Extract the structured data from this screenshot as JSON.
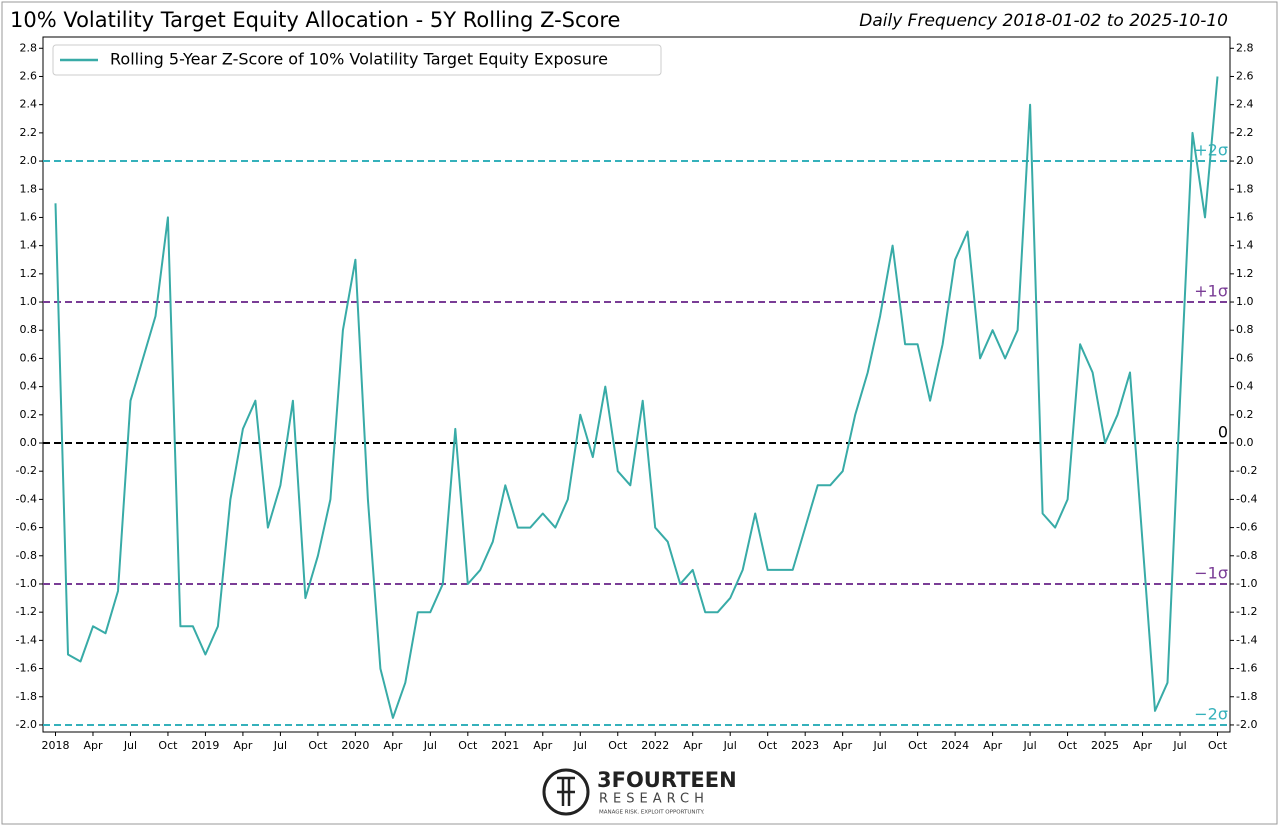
{
  "chart_data": {
    "type": "line",
    "title": "10% Volatility Target Equity Allocation - 5Y Rolling Z-Score",
    "subtitle": "Daily Frequency 2018-01-02 to 2025-10-10",
    "legend": "upper left",
    "x": [
      "2018-01",
      "2018-02",
      "2018-03",
      "2018-04",
      "2018-05",
      "2018-06",
      "2018-07",
      "2018-08",
      "2018-09",
      "2018-10",
      "2018-11",
      "2018-12",
      "2019-01",
      "2019-02",
      "2019-03",
      "2019-04",
      "2019-05",
      "2019-06",
      "2019-07",
      "2019-08",
      "2019-09",
      "2019-10",
      "2019-11",
      "2019-12",
      "2020-01",
      "2020-02",
      "2020-03",
      "2020-04",
      "2020-05",
      "2020-06",
      "2020-07",
      "2020-08",
      "2020-09",
      "2020-10",
      "2020-11",
      "2020-12",
      "2021-01",
      "2021-02",
      "2021-03",
      "2021-04",
      "2021-05",
      "2021-06",
      "2021-07",
      "2021-08",
      "2021-09",
      "2021-10",
      "2021-11",
      "2021-12",
      "2022-01",
      "2022-02",
      "2022-03",
      "2022-04",
      "2022-05",
      "2022-06",
      "2022-07",
      "2022-08",
      "2022-09",
      "2022-10",
      "2022-11",
      "2022-12",
      "2023-01",
      "2023-02",
      "2023-03",
      "2023-04",
      "2023-05",
      "2023-06",
      "2023-07",
      "2023-08",
      "2023-09",
      "2023-10",
      "2023-11",
      "2023-12",
      "2024-01",
      "2024-02",
      "2024-03",
      "2024-04",
      "2024-05",
      "2024-06",
      "2024-07",
      "2024-08",
      "2024-09",
      "2024-10",
      "2024-11",
      "2024-12",
      "2025-01",
      "2025-02",
      "2025-03",
      "2025-04",
      "2025-05",
      "2025-06",
      "2025-07",
      "2025-08",
      "2025-09",
      "2025-10"
    ],
    "series": [
      {
        "name": "Rolling 5-Year Z-Score of 10% Volatility Target Equity Exposure",
        "color": "#38aba7",
        "values": [
          1.7,
          -1.5,
          -1.55,
          -1.3,
          -1.35,
          -1.05,
          0.3,
          0.6,
          0.9,
          1.6,
          -1.3,
          -1.3,
          -1.5,
          -1.3,
          -0.4,
          0.1,
          0.3,
          -0.6,
          -0.3,
          0.3,
          -1.1,
          -0.8,
          -0.4,
          0.8,
          1.3,
          -0.4,
          -1.6,
          -1.95,
          -1.7,
          -1.2,
          -1.2,
          -1.0,
          0.1,
          -1.0,
          -0.9,
          -0.7,
          -0.3,
          -0.6,
          -0.6,
          -0.5,
          -0.6,
          -0.4,
          0.2,
          -0.1,
          0.4,
          -0.2,
          -0.3,
          0.3,
          -0.6,
          -0.7,
          -1.0,
          -0.9,
          -1.2,
          -1.2,
          -1.1,
          -0.9,
          -0.5,
          -0.9,
          -0.9,
          -0.9,
          -0.6,
          -0.3,
          -0.3,
          -0.2,
          0.2,
          0.5,
          0.9,
          1.4,
          0.7,
          0.7,
          0.3,
          0.7,
          1.3,
          1.5,
          0.6,
          0.8,
          0.6,
          0.8,
          2.4,
          -0.5,
          -0.6,
          -0.4,
          0.7,
          0.5,
          0.0,
          0.2,
          0.5,
          -0.7,
          -1.9,
          -1.7,
          0.3,
          2.2,
          1.6,
          2.6
        ]
      }
    ],
    "xlim": [
      "2017-12",
      "2025-11"
    ],
    "xticks": [
      {
        "value": "2018-01",
        "label": "2018"
      },
      {
        "value": "2018-04",
        "label": "Apr"
      },
      {
        "value": "2018-07",
        "label": "Jul"
      },
      {
        "value": "2018-10",
        "label": "Oct"
      },
      {
        "value": "2019-01",
        "label": "2019"
      },
      {
        "value": "2019-04",
        "label": "Apr"
      },
      {
        "value": "2019-07",
        "label": "Jul"
      },
      {
        "value": "2019-10",
        "label": "Oct"
      },
      {
        "value": "2020-01",
        "label": "2020"
      },
      {
        "value": "2020-04",
        "label": "Apr"
      },
      {
        "value": "2020-07",
        "label": "Jul"
      },
      {
        "value": "2020-10",
        "label": "Oct"
      },
      {
        "value": "2021-01",
        "label": "2021"
      },
      {
        "value": "2021-04",
        "label": "Apr"
      },
      {
        "value": "2021-07",
        "label": "Jul"
      },
      {
        "value": "2021-10",
        "label": "Oct"
      },
      {
        "value": "2022-01",
        "label": "2022"
      },
      {
        "value": "2022-04",
        "label": "Apr"
      },
      {
        "value": "2022-07",
        "label": "Jul"
      },
      {
        "value": "2022-10",
        "label": "Oct"
      },
      {
        "value": "2023-01",
        "label": "2023"
      },
      {
        "value": "2023-04",
        "label": "Apr"
      },
      {
        "value": "2023-07",
        "label": "Jul"
      },
      {
        "value": "2023-10",
        "label": "Oct"
      },
      {
        "value": "2024-01",
        "label": "2024"
      },
      {
        "value": "2024-04",
        "label": "Apr"
      },
      {
        "value": "2024-07",
        "label": "Jul"
      },
      {
        "value": "2024-10",
        "label": "Oct"
      },
      {
        "value": "2025-01",
        "label": "2025"
      },
      {
        "value": "2025-04",
        "label": "Apr"
      },
      {
        "value": "2025-07",
        "label": "Jul"
      },
      {
        "value": "2025-10",
        "label": "Oct"
      }
    ],
    "ylim": [
      -2.05,
      2.88
    ],
    "yticks": [
      {
        "value": -2.0,
        "label": "-2.0"
      },
      {
        "value": -1.8,
        "label": "-1.8"
      },
      {
        "value": -1.6,
        "label": "-1.6"
      },
      {
        "value": -1.4,
        "label": "-1.4"
      },
      {
        "value": -1.2,
        "label": "-1.2"
      },
      {
        "value": -1.0,
        "label": "-1.0"
      },
      {
        "value": -0.8,
        "label": "-0.8"
      },
      {
        "value": -0.6,
        "label": "-0.6"
      },
      {
        "value": -0.4,
        "label": "-0.4"
      },
      {
        "value": -0.2,
        "label": "-0.2"
      },
      {
        "value": 0,
        "label": "0.0"
      },
      {
        "value": 0.2,
        "label": "0.2"
      },
      {
        "value": 0.4,
        "label": "0.4"
      },
      {
        "value": 0.6,
        "label": "0.6"
      },
      {
        "value": 0.8,
        "label": "0.8"
      },
      {
        "value": 1.0,
        "label": "1.0"
      },
      {
        "value": 1.2,
        "label": "1.2"
      },
      {
        "value": 1.4,
        "label": "1.4"
      },
      {
        "value": 1.6,
        "label": "1.6"
      },
      {
        "value": 1.8,
        "label": "1.8"
      },
      {
        "value": 2.0,
        "label": "2.0"
      },
      {
        "value": 2.2,
        "label": "2.2"
      },
      {
        "value": 2.4,
        "label": "2.4"
      },
      {
        "value": 2.6,
        "label": "2.6"
      },
      {
        "value": 2.8,
        "label": "2.8"
      }
    ],
    "reference_lines": [
      {
        "value": 2,
        "label": "+2σ",
        "color": "#35b1bb"
      },
      {
        "value": 1,
        "label": "+1σ",
        "color": "#7a3d96"
      },
      {
        "value": 0,
        "label": "0",
        "color": "#000000"
      },
      {
        "value": -1,
        "label": "−1σ",
        "color": "#7a3d96"
      },
      {
        "value": -2,
        "label": "−2σ",
        "color": "#35b1bb"
      }
    ]
  },
  "logo": {
    "name": "3FOURTEEN",
    "sub": "RESEARCH",
    "tagline": "MANAGE RISK. EXPLOIT OPPORTUNITY."
  }
}
